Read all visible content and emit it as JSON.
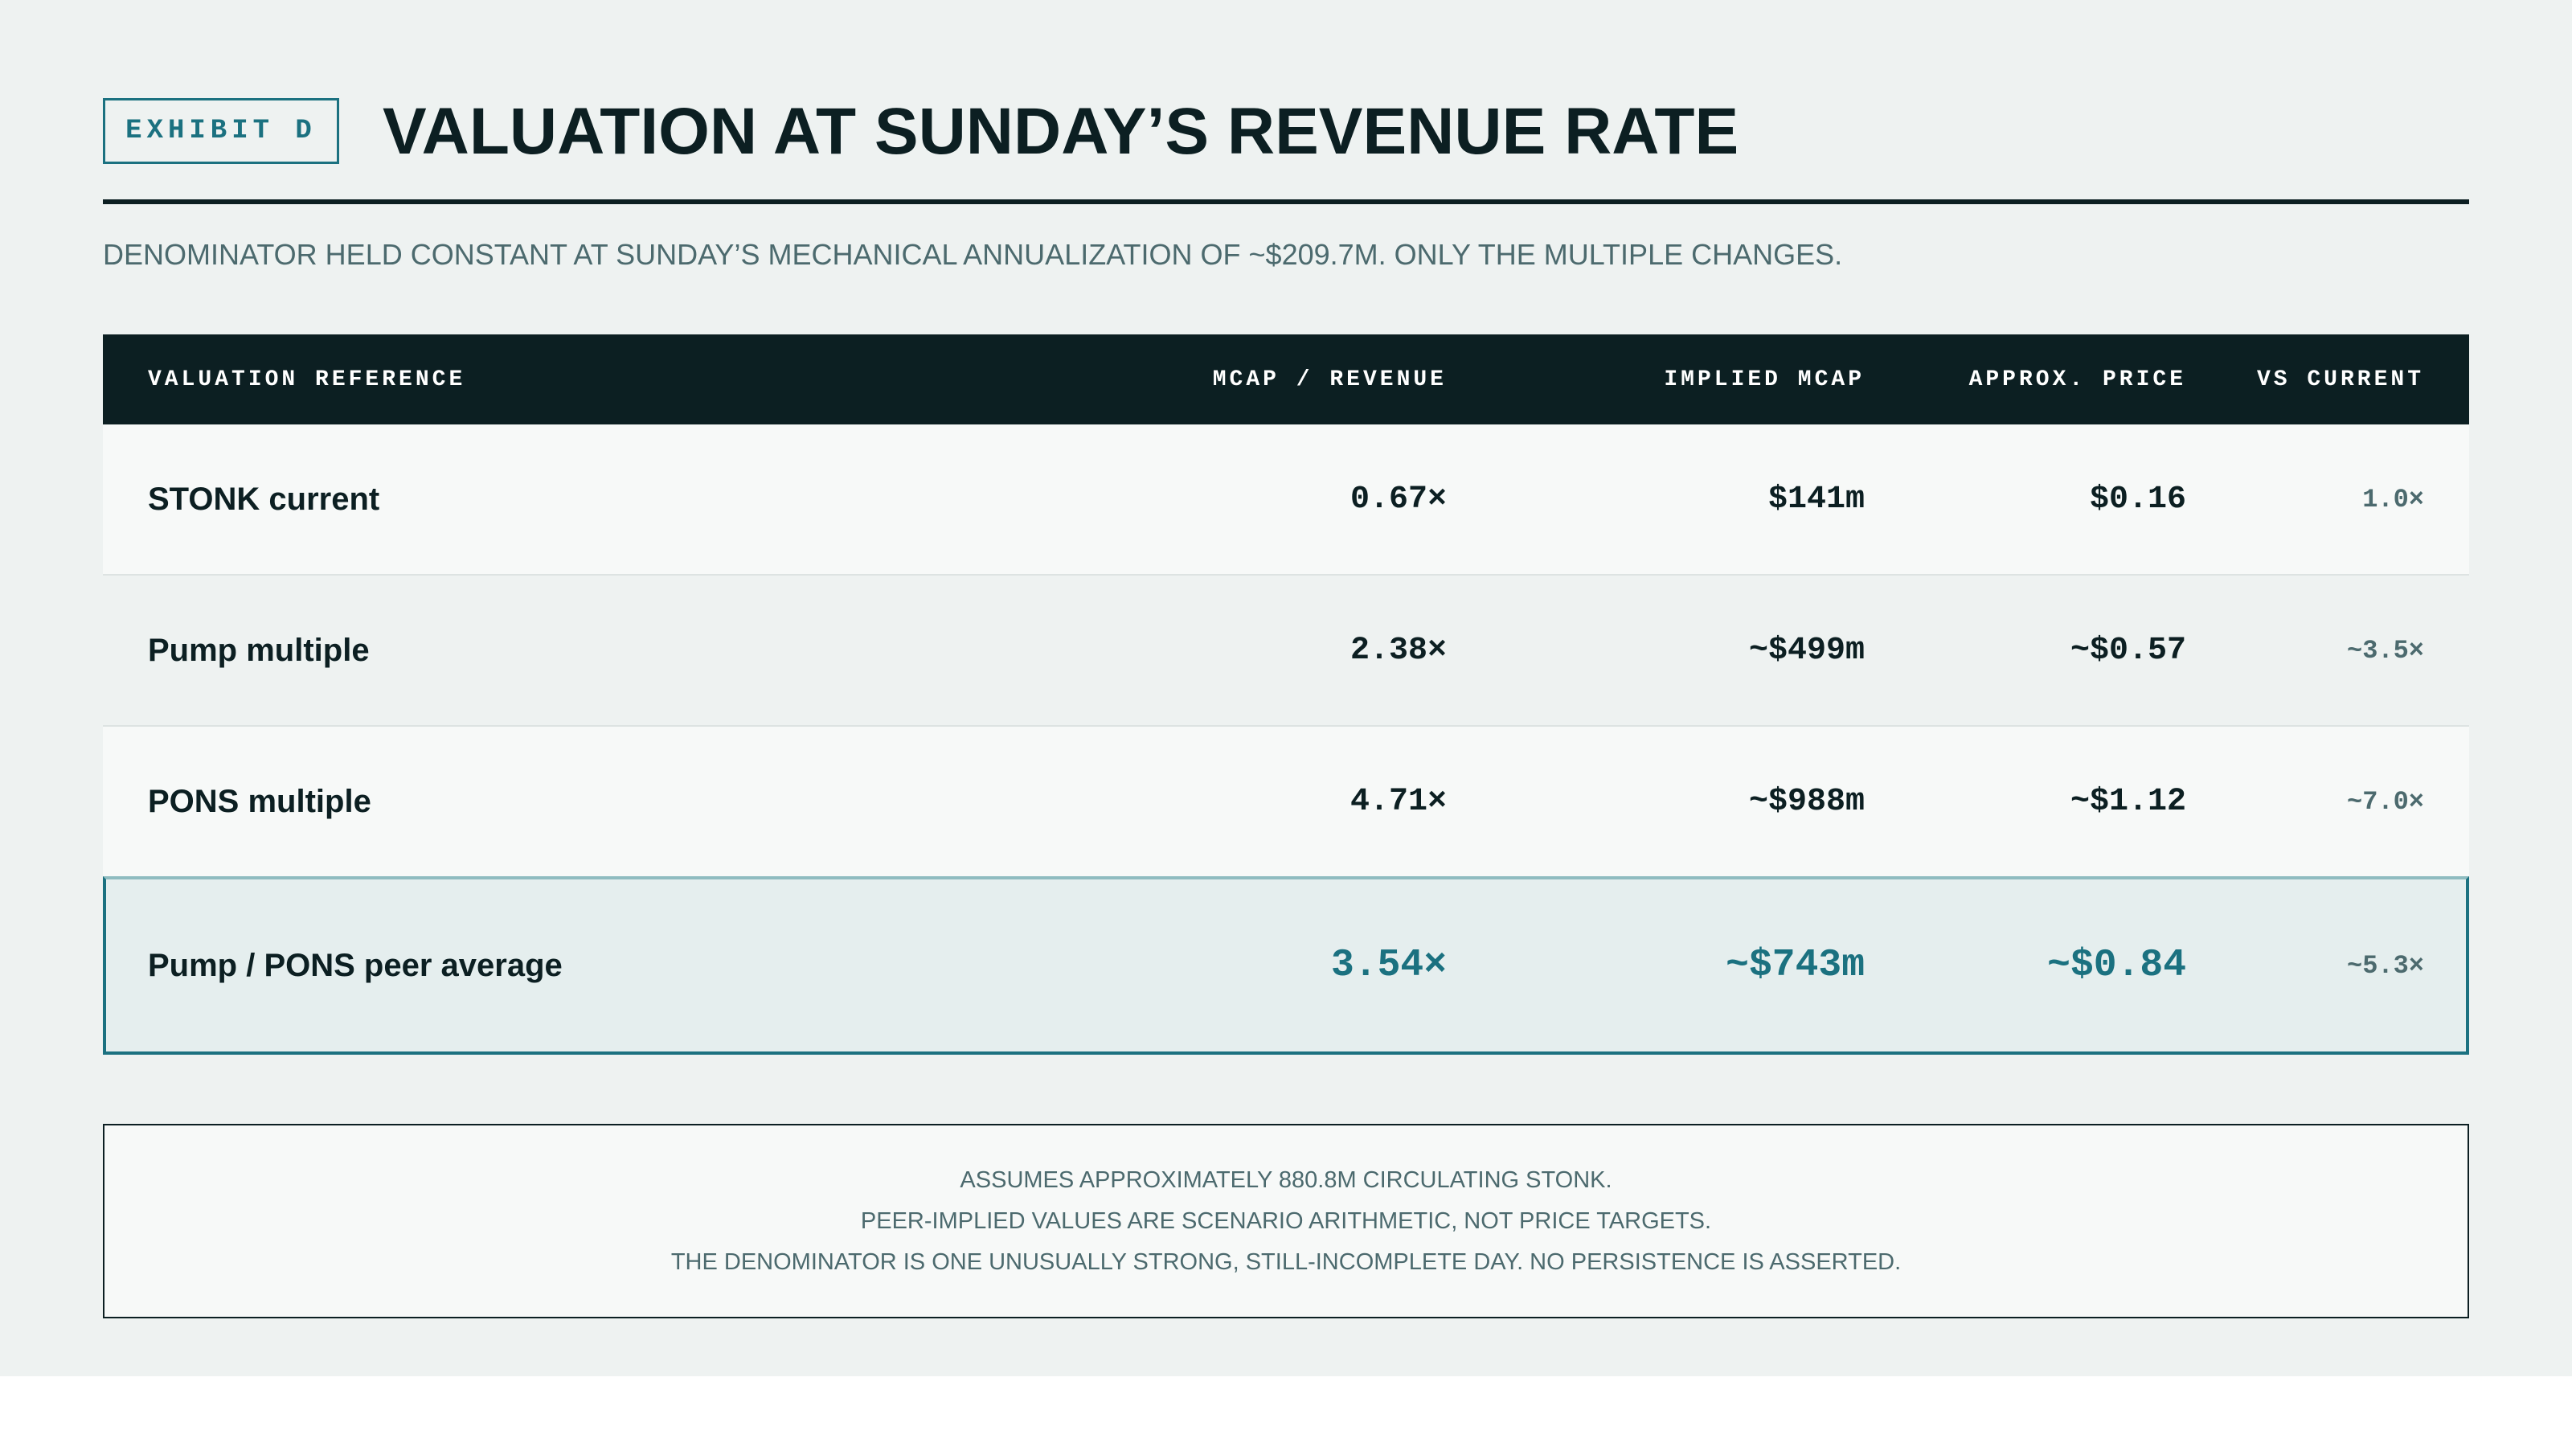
{
  "exhibit_label": "EXHIBIT D",
  "title": "VALUATION AT SUNDAY’S REVENUE RATE",
  "subtitle": "DENOMINATOR HELD CONSTANT AT SUNDAY’S MECHANICAL ANNUALIZATION OF ~$209.7M. ONLY THE MULTIPLE CHANGES.",
  "table": {
    "headers": [
      "VALUATION REFERENCE",
      "MCAP / REVENUE",
      "IMPLIED MCAP",
      "APPROX. PRICE",
      "VS CURRENT"
    ],
    "rows": [
      {
        "reference": "STONK current",
        "multiple": "0.67×",
        "implied_mcap": "$141m",
        "price": "$0.16",
        "vs_current": "1.0×"
      },
      {
        "reference": "Pump multiple",
        "multiple": "2.38×",
        "implied_mcap": "~$499m",
        "price": "~$0.57",
        "vs_current": "~3.5×"
      },
      {
        "reference": "PONS multiple",
        "multiple": "4.71×",
        "implied_mcap": "~$988m",
        "price": "~$1.12",
        "vs_current": "~7.0×"
      },
      {
        "reference": "Pump / PONS peer average",
        "multiple": "3.54×",
        "implied_mcap": "~$743m",
        "price": "~$0.84",
        "vs_current": "~5.3×",
        "highlighted": true
      }
    ]
  },
  "notes": [
    "ASSUMES APPROXIMATELY 880.8M CIRCULATING STONK.",
    "PEER-IMPLIED VALUES ARE SCENARIO ARITHMETIC, NOT PRICE TARGETS.",
    "THE DENOMINATOR IS ONE UNUSUALLY STRONG, STILL-INCOMPLETE DAY. NO PERSISTENCE IS ASSERTED."
  ],
  "colors": {
    "accent": "#1b7180",
    "ink": "#0c1f22",
    "muted": "#4c6a6e",
    "background": "#eef2f1"
  }
}
